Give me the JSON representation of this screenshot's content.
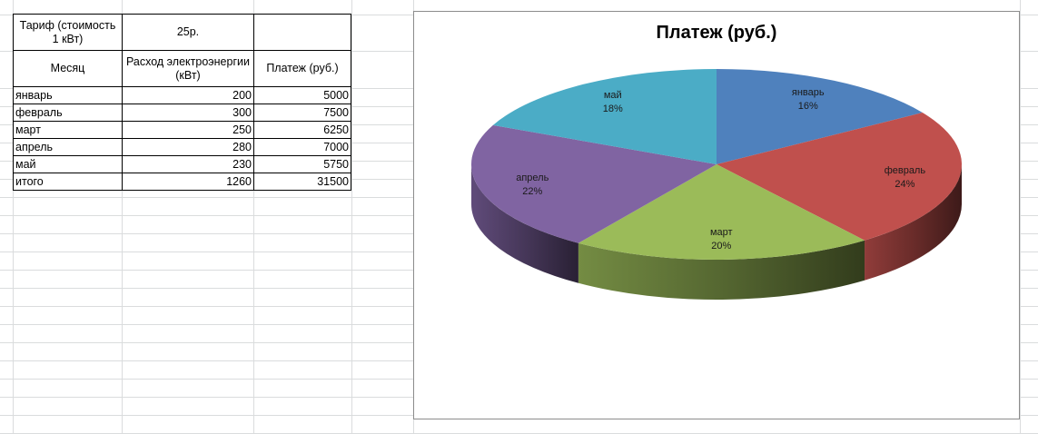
{
  "sheet": {
    "tariff_label": "Тариф (стоимость 1 кВт)",
    "tariff_value": "25р.",
    "headers": [
      "Месяц",
      "Расход электроэнергии (кВт)",
      "Платеж (руб.)"
    ],
    "rows": [
      {
        "month": "январь",
        "usage": "200",
        "payment": "5000"
      },
      {
        "month": "февраль",
        "usage": "300",
        "payment": "7500"
      },
      {
        "month": "март",
        "usage": "250",
        "payment": "6250"
      },
      {
        "month": "апрель",
        "usage": "280",
        "payment": "7000"
      },
      {
        "month": "май",
        "usage": "230",
        "payment": "5750"
      }
    ],
    "total": {
      "label": "итого",
      "usage": "1260",
      "payment": "31500"
    }
  },
  "chart_data": {
    "type": "pie",
    "title": "Платеж (руб.)",
    "categories": [
      "январь",
      "февраль",
      "март",
      "апрель",
      "май"
    ],
    "values": [
      5000,
      7500,
      6250,
      7000,
      5750
    ],
    "data_labels": [
      "16%",
      "24%",
      "20%",
      "22%",
      "18%"
    ],
    "colors": [
      "#4f81bd",
      "#c0504d",
      "#9bbb59",
      "#8064a2",
      "#4bacc6"
    ],
    "style": "3d",
    "legend": "none"
  }
}
